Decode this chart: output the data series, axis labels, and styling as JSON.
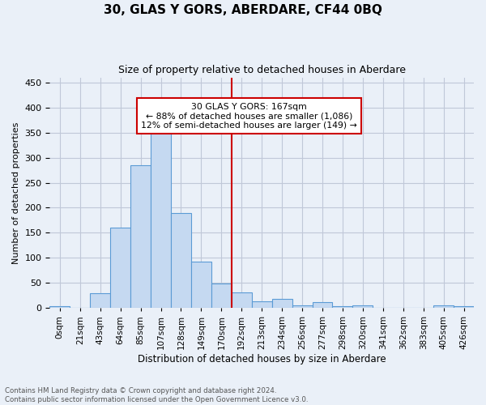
{
  "title": "30, GLAS Y GORS, ABERDARE, CF44 0BQ",
  "subtitle": "Size of property relative to detached houses in Aberdare",
  "xlabel": "Distribution of detached houses by size in Aberdare",
  "ylabel": "Number of detached properties",
  "footnote1": "Contains HM Land Registry data © Crown copyright and database right 2024.",
  "footnote2": "Contains public sector information licensed under the Open Government Licence v3.0.",
  "bar_labels": [
    "0sqm",
    "21sqm",
    "43sqm",
    "64sqm",
    "85sqm",
    "107sqm",
    "128sqm",
    "149sqm",
    "170sqm",
    "192sqm",
    "213sqm",
    "234sqm",
    "256sqm",
    "277sqm",
    "298sqm",
    "320sqm",
    "341sqm",
    "362sqm",
    "383sqm",
    "405sqm",
    "426sqm"
  ],
  "bar_heights": [
    3,
    0,
    29,
    161,
    284,
    350,
    190,
    93,
    49,
    31,
    14,
    18,
    6,
    11,
    3,
    5,
    1,
    1,
    0,
    5,
    3
  ],
  "bar_color": "#c5d9f1",
  "bar_edge_color": "#5b9bd5",
  "grid_color": "#c0c8d8",
  "background_color": "#eaf0f8",
  "vline_x": 8.5,
  "vline_color": "#cc0000",
  "annotation_text": "30 GLAS Y GORS: 167sqm\n← 88% of detached houses are smaller (1,086)\n12% of semi-detached houses are larger (149) →",
  "annotation_box_color": "#cc0000",
  "ylim": [
    0,
    460
  ],
  "yticks": [
    0,
    50,
    100,
    150,
    200,
    250,
    300,
    350,
    400,
    450
  ]
}
